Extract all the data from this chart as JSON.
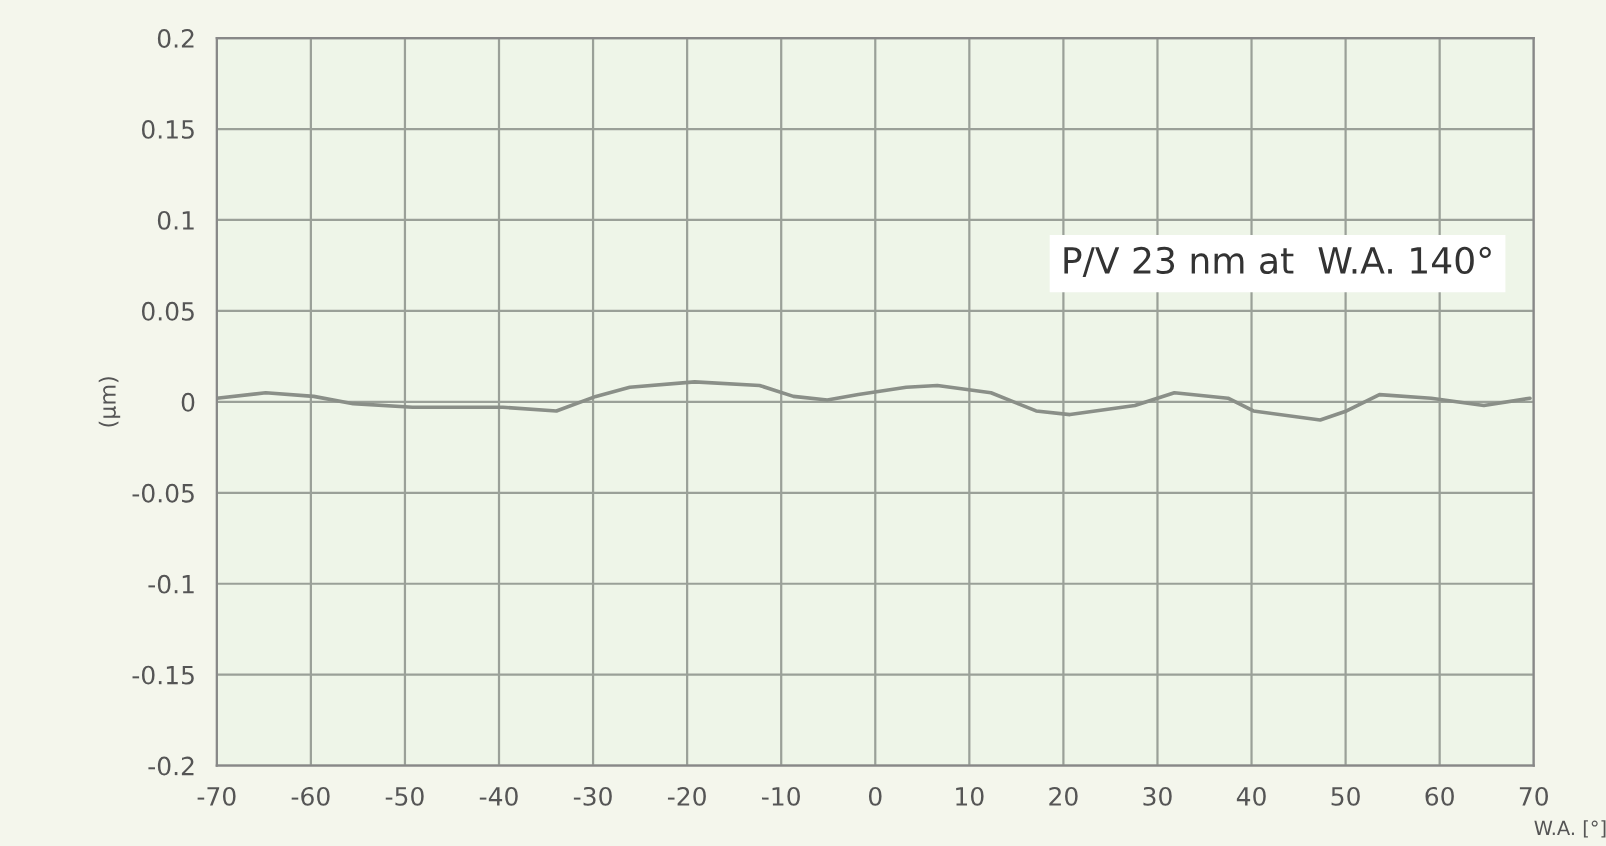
{
  "chart_data": {
    "type": "line",
    "xlabel": "W.A. [°]",
    "ylabel": "(µm)",
    "annotations": [
      "P/V 23 nm at  W.A. 140°"
    ],
    "series": [
      {
        "color": "#8a8f88",
        "x": [
          -70,
          -64.8,
          -59.7,
          -55.5,
          -49.2,
          -39.6,
          -33.9,
          -29.7,
          -26.1,
          -19.2,
          -12.3,
          -8.7,
          -5.1,
          -1.8,
          3.3,
          6.6,
          12.3,
          17.1,
          20.7,
          27.6,
          31.8,
          37.5,
          40.2,
          47.3,
          50.1,
          53.6,
          59.1,
          64.7,
          69.6
        ],
        "values": [
          0.002,
          0.005,
          0.003,
          -0.001,
          -0.003,
          -0.003,
          -0.005,
          0.003,
          0.008,
          0.011,
          0.009,
          0.003,
          0.001,
          0.004,
          0.008,
          0.009,
          0.005,
          -0.005,
          -0.007,
          -0.002,
          0.005,
          0.002,
          -0.005,
          -0.01,
          -0.005,
          0.004,
          0.002,
          -0.002,
          0.002
        ]
      }
    ],
    "xlim": [
      -70,
      70
    ],
    "xticks": [
      -70,
      -60,
      -50,
      -40,
      -30,
      -20,
      -10,
      0,
      10,
      20,
      30,
      40,
      50,
      60,
      70
    ],
    "ylim": [
      -0.2,
      0.2
    ],
    "yticks": [
      -0.2,
      -0.15,
      -0.1,
      -0.05,
      0,
      0.05,
      0.1,
      0.15,
      0.2
    ],
    "grid": true,
    "marker": "none",
    "line_style": "solid"
  }
}
